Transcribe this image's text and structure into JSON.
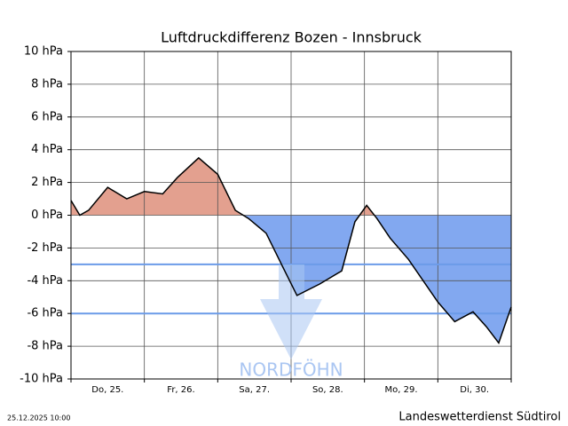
{
  "chart_data": {
    "type": "area-line",
    "title": "Luftdruckdifferenz Bozen - Innsbruck",
    "categories": [
      "Do, 25.",
      "Fr, 26.",
      "Sa, 27.",
      "So, 28.",
      "Mo, 29.",
      "Di, 30."
    ],
    "x": [
      0,
      0.12,
      0.24,
      0.5,
      0.76,
      1.0,
      1.25,
      1.45,
      1.74,
      2.0,
      2.24,
      2.42,
      2.66,
      2.88,
      3.08,
      3.39,
      3.69,
      3.87,
      4.03,
      4.17,
      4.35,
      4.6,
      5.0,
      5.23,
      5.48,
      5.66,
      5.83,
      6.0
    ],
    "values": [
      0.9,
      0.0,
      0.3,
      1.7,
      1.0,
      1.45,
      1.3,
      2.3,
      3.5,
      2.5,
      0.3,
      -0.2,
      -1.1,
      -3.1,
      -4.9,
      -4.2,
      -3.4,
      -0.4,
      0.6,
      -0.2,
      -1.4,
      -2.7,
      -5.3,
      -6.5,
      -5.9,
      -6.8,
      -7.8,
      -5.6
    ],
    "xlim": [
      0,
      6
    ],
    "xticks": [
      0,
      1,
      2,
      3,
      4,
      5,
      6
    ],
    "ylim": [
      -10,
      10
    ],
    "yticks": [
      {
        "value": -10,
        "label": "-10 hPa"
      },
      {
        "value": -8,
        "label": "-8 hPa"
      },
      {
        "value": -6,
        "label": "-6 hPa"
      },
      {
        "value": -4,
        "label": "-4 hPa"
      },
      {
        "value": -2,
        "label": "-2 hPa"
      },
      {
        "value": 0,
        "label": "0 hPa"
      },
      {
        "value": 2,
        "label": "2 hPa"
      },
      {
        "value": 4,
        "label": "4 hPa"
      },
      {
        "value": 6,
        "label": "6 hPa"
      },
      {
        "value": 8,
        "label": "8 hPa"
      },
      {
        "value": 10,
        "label": "10 hPa"
      }
    ],
    "reference_lines": [
      {
        "value": -3,
        "color": "#6b9be8"
      },
      {
        "value": -6,
        "color": "#6b9be8"
      }
    ],
    "annotation": "NORDFÖHN",
    "positive_color": "#e3a08f",
    "negative_color": "#82a8f0",
    "line_color": "#000000",
    "grid": true
  },
  "footer": {
    "timestamp": "25.12.2025 10:00",
    "source": "Landeswetterdienst Südtirol"
  }
}
